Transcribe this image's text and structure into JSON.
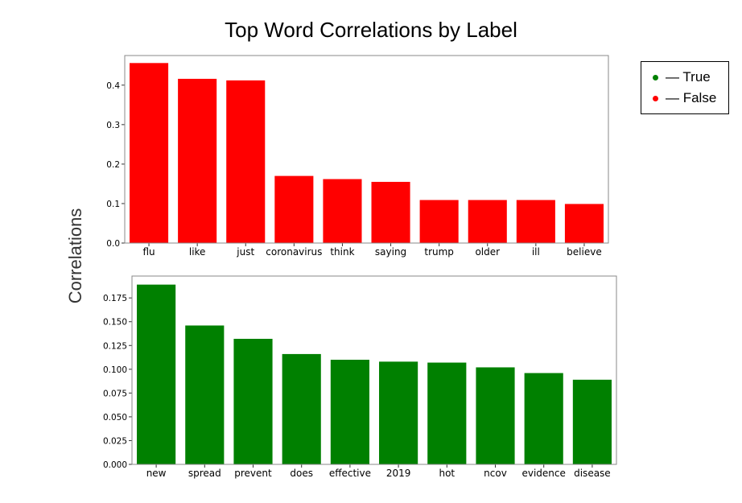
{
  "title": "Top Word Correlations by Label",
  "ylabel": "Correlations",
  "legend": {
    "items": [
      {
        "label": "— True",
        "color": "#008000"
      },
      {
        "label": "— False",
        "color": "#ff0000"
      }
    ]
  },
  "chart_data": [
    {
      "type": "bar",
      "color": "#ff0000",
      "categories": [
        "flu",
        "like",
        "just",
        "coronavirus",
        "think",
        "saying",
        "trump",
        "older",
        "ill",
        "believe"
      ],
      "values": [
        0.456,
        0.416,
        0.412,
        0.17,
        0.162,
        0.155,
        0.109,
        0.109,
        0.109,
        0.099
      ],
      "ylim": [
        0,
        0.475
      ],
      "yticks": [
        0.0,
        0.1,
        0.2,
        0.3,
        0.4
      ],
      "ytick_labels": [
        "0.0",
        "0.1",
        "0.2",
        "0.3",
        "0.4"
      ],
      "grid": false
    },
    {
      "type": "bar",
      "color": "#008000",
      "categories": [
        "new",
        "spread",
        "prevent",
        "does",
        "effective",
        "2019",
        "hot",
        "ncov",
        "evidence",
        "disease"
      ],
      "values": [
        0.189,
        0.146,
        0.132,
        0.116,
        0.11,
        0.108,
        0.107,
        0.102,
        0.096,
        0.089
      ],
      "ylim": [
        0,
        0.198
      ],
      "yticks": [
        0.0,
        0.025,
        0.05,
        0.075,
        0.1,
        0.125,
        0.15,
        0.175
      ],
      "ytick_labels": [
        "0.000",
        "0.025",
        "0.050",
        "0.075",
        "0.100",
        "0.125",
        "0.150",
        "0.175"
      ],
      "grid": false
    }
  ]
}
